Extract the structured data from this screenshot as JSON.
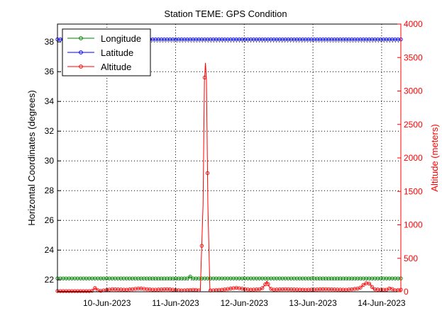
{
  "chart_data": {
    "type": "line",
    "title": "Station TEME: GPS Condition",
    "ylabel": "Horizontal Coordinates (degrees)",
    "y2label": "Altitude (meters)",
    "ylim": [
      21.2,
      39.2
    ],
    "y2lim": [
      0,
      4000
    ],
    "yticks": [
      22,
      24,
      26,
      28,
      30,
      32,
      34,
      36,
      38
    ],
    "y2ticks": [
      0,
      500,
      1000,
      1500,
      2000,
      2500,
      3000,
      3500,
      4000
    ],
    "xlim": [
      0,
      5
    ],
    "xticks": [
      {
        "pos": 0.72,
        "label": "10-Jun-2023"
      },
      {
        "pos": 1.72,
        "label": "11-Jun-2023"
      },
      {
        "pos": 2.72,
        "label": "12-Jun-2023"
      },
      {
        "pos": 3.72,
        "label": "13-Jun-2023"
      },
      {
        "pos": 4.72,
        "label": "14-Jun-2023"
      }
    ],
    "grid": true,
    "legend": "top-left",
    "colors": {
      "longitude": "#008000",
      "latitude": "#0000ff",
      "altitude": "#ff0000"
    },
    "series": [
      {
        "name": "Longitude",
        "axis": "left",
        "color": "#008000",
        "points": [
          [
            0.0,
            22.1
          ],
          [
            1.9,
            22.1
          ],
          [
            1.93,
            22.23
          ],
          [
            1.96,
            22.1
          ],
          [
            5.0,
            22.1
          ]
        ]
      },
      {
        "name": "Latitude",
        "axis": "left",
        "color": "#0000ff",
        "points": [
          [
            0.0,
            38.17
          ],
          [
            5.0,
            38.17
          ]
        ]
      },
      {
        "name": "Altitude",
        "axis": "right",
        "color": "#ff0000",
        "points": [
          [
            0.0,
            10
          ],
          [
            0.5,
            10
          ],
          [
            0.55,
            60
          ],
          [
            0.6,
            10
          ],
          [
            0.8,
            40
          ],
          [
            1.0,
            30
          ],
          [
            1.2,
            50
          ],
          [
            1.4,
            30
          ],
          [
            1.6,
            40
          ],
          [
            1.8,
            20
          ],
          [
            2.0,
            30
          ],
          [
            2.08,
            20
          ],
          [
            2.12,
            1300
          ],
          [
            2.14,
            3150
          ],
          [
            2.155,
            3420
          ],
          [
            2.17,
            3150
          ],
          [
            2.19,
            1300
          ],
          [
            2.22,
            20
          ],
          [
            2.4,
            30
          ],
          [
            2.6,
            60
          ],
          [
            2.8,
            30
          ],
          [
            2.97,
            40
          ],
          [
            3.02,
            100
          ],
          [
            3.05,
            160
          ],
          [
            3.08,
            80
          ],
          [
            3.12,
            30
          ],
          [
            3.3,
            40
          ],
          [
            3.6,
            30
          ],
          [
            3.9,
            40
          ],
          [
            4.2,
            30
          ],
          [
            4.4,
            50
          ],
          [
            4.45,
            100
          ],
          [
            4.5,
            130
          ],
          [
            4.55,
            120
          ],
          [
            4.6,
            40
          ],
          [
            4.7,
            30
          ],
          [
            4.8,
            30
          ],
          [
            4.85,
            60
          ],
          [
            4.9,
            20
          ],
          [
            5.0,
            30
          ]
        ]
      }
    ]
  }
}
